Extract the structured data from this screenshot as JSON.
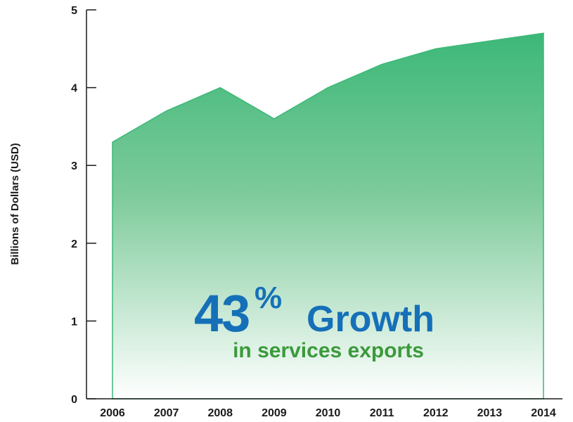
{
  "chart_data": {
    "type": "area",
    "categories": [
      "2006",
      "2007",
      "2008",
      "2009",
      "2010",
      "2011",
      "2012",
      "2013",
      "2014"
    ],
    "values": [
      3.3,
      3.7,
      4.0,
      3.6,
      4.0,
      4.3,
      4.5,
      4.6,
      4.7
    ],
    "ylabel": "Billions of Dollars (USD)",
    "xlabel": "",
    "ylim": [
      0,
      5
    ],
    "yticks": [
      "0",
      "1",
      "2",
      "3",
      "4",
      "5"
    ],
    "grid": false,
    "colors": {
      "area_top": "#3cb878",
      "area_bottom": "#ffffff",
      "stroke": "#3cb878",
      "headline": "#1570b8",
      "subhead": "#3a9a3a"
    },
    "annotation": {
      "number": "43",
      "percent": "%",
      "word": "Growth",
      "subtext": "in services exports"
    }
  }
}
